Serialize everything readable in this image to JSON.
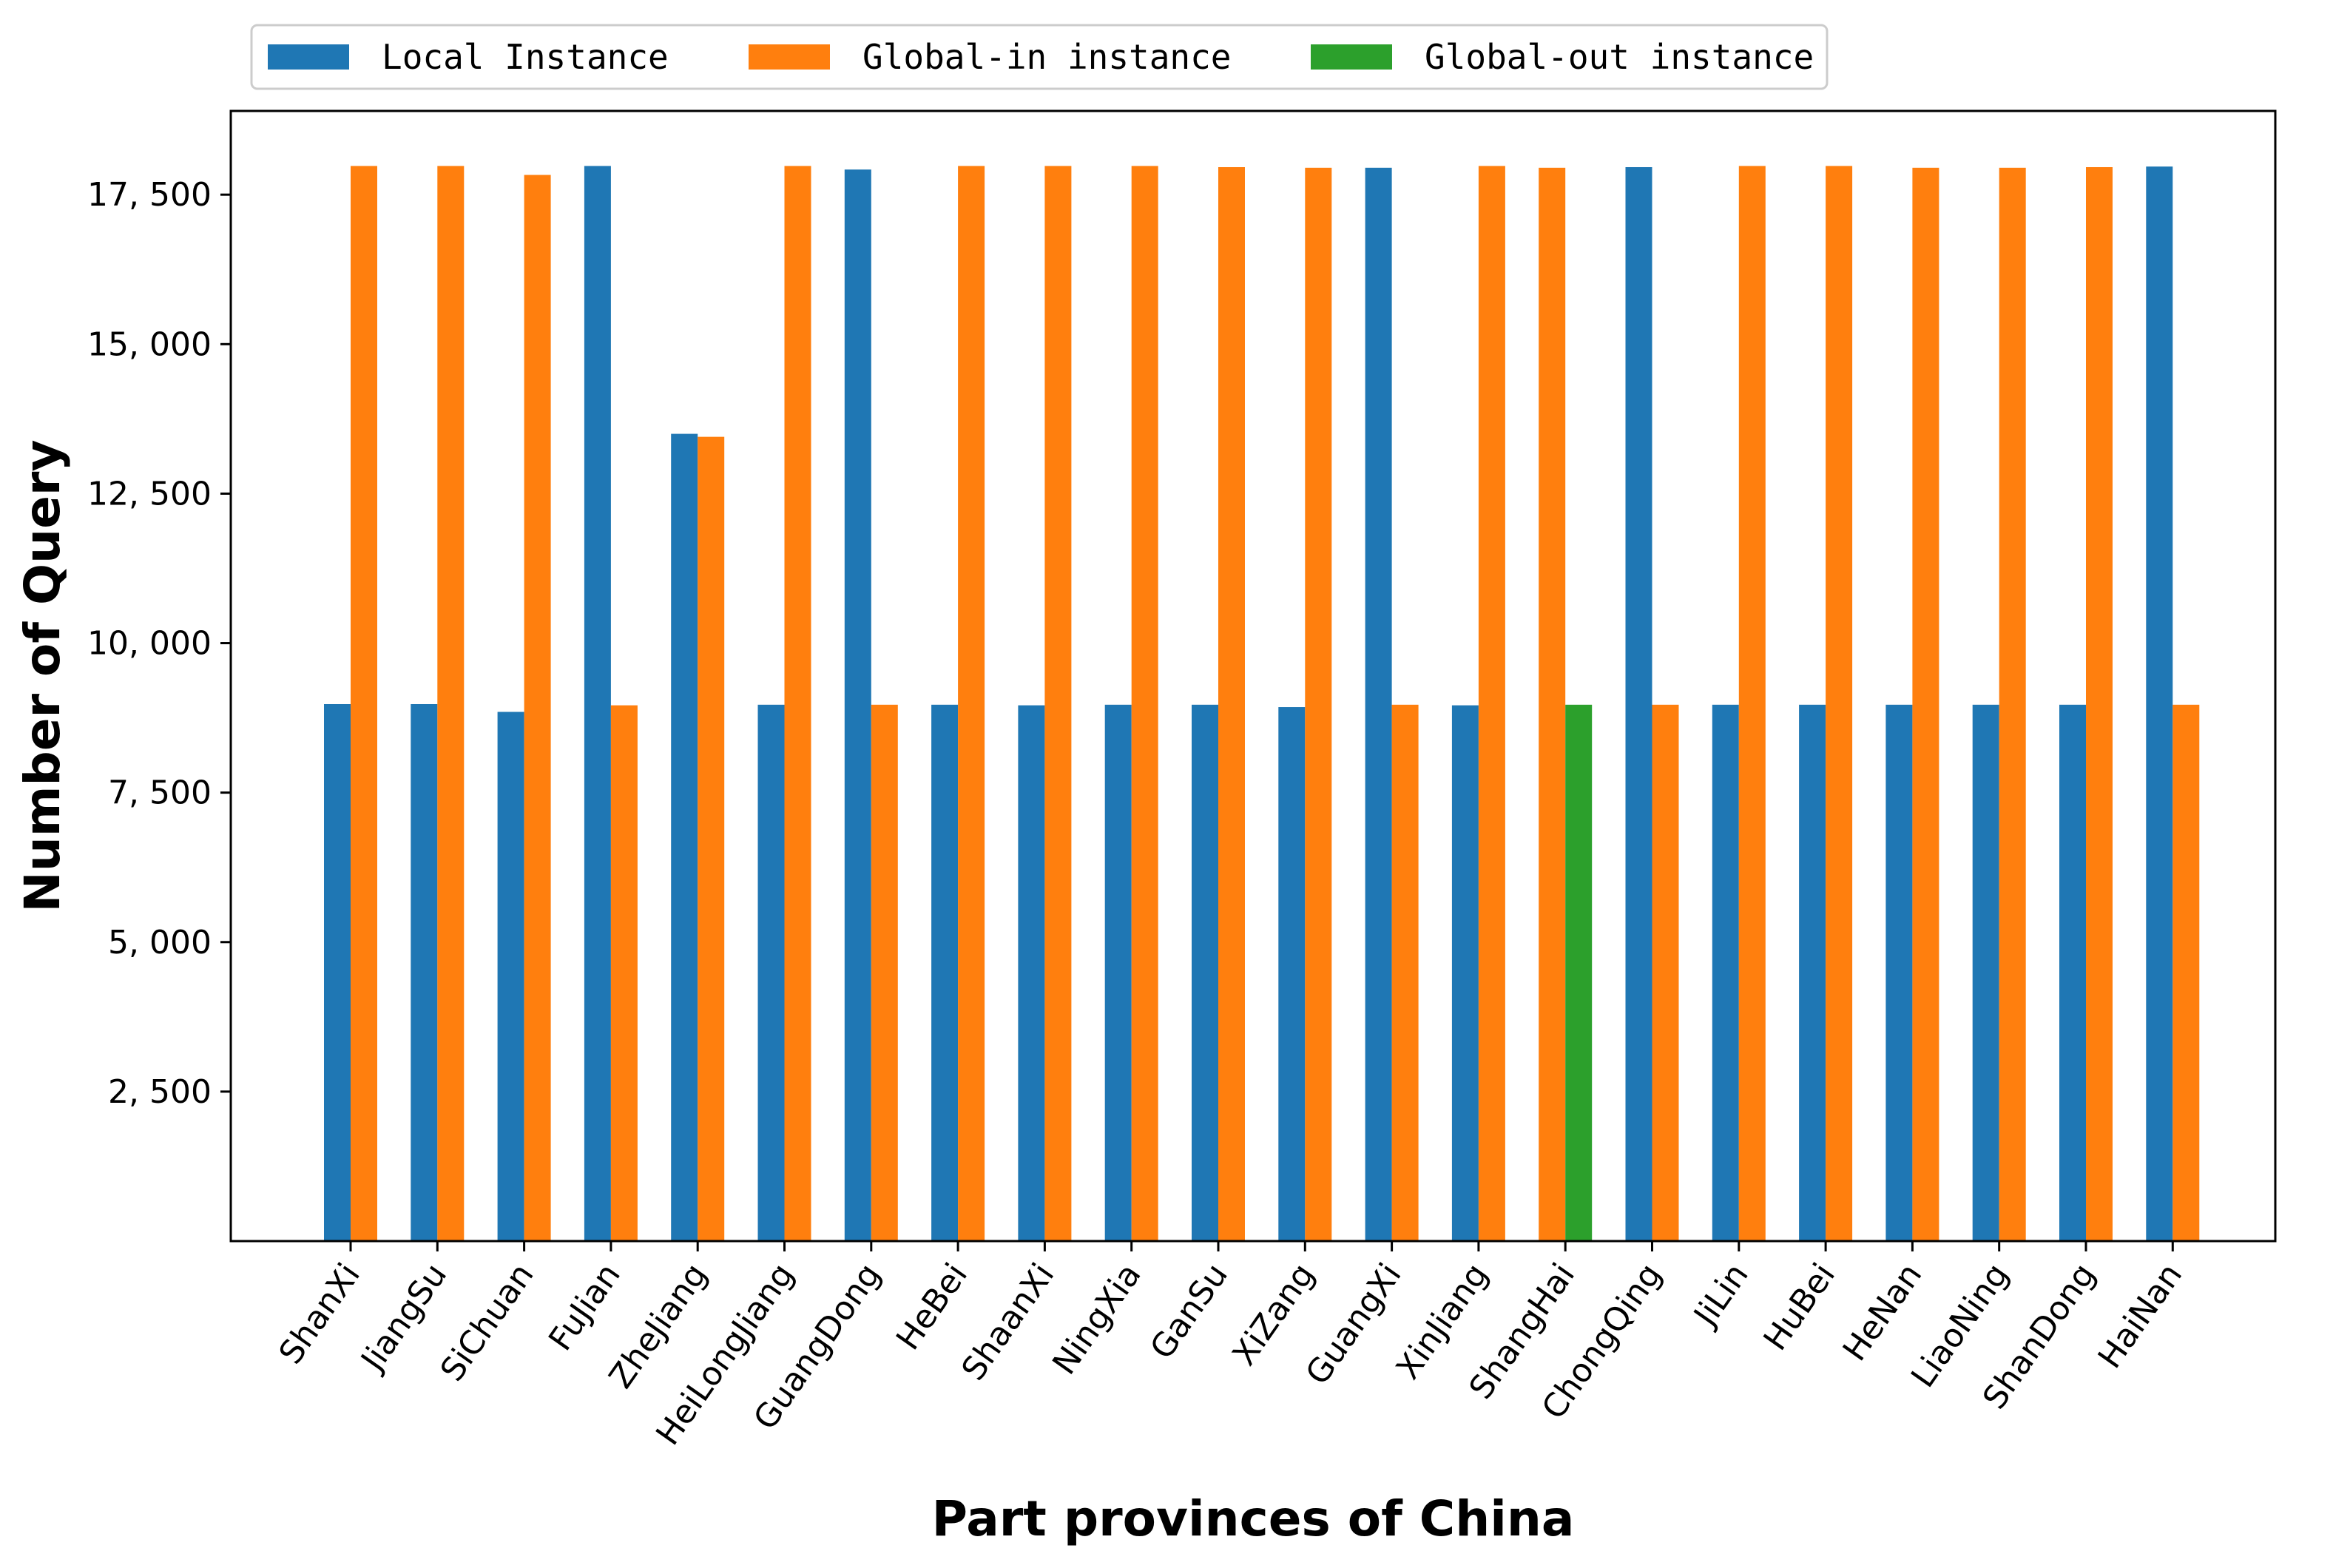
{
  "chart_data": {
    "type": "bar",
    "title": "",
    "xlabel": "Part provinces of China",
    "ylabel": "Number of Query",
    "ylim": [
      0,
      18900
    ],
    "yticks": [
      2500,
      5000,
      7500,
      10000,
      12500,
      15000,
      17500
    ],
    "ytick_labels": [
      "2, 500",
      "5, 000",
      "7, 500",
      "10, 000",
      "12, 500",
      "15, 000",
      "17, 500"
    ],
    "grid": false,
    "legend_position": "top-left, above plot",
    "categories": [
      "ShanXi",
      "JiangSu",
      "SiChuan",
      "FuJian",
      "ZheJiang",
      "HeiLongJiang",
      "GuangDong",
      "HeBei",
      "ShaanXi",
      "NingXia",
      "GanSu",
      "XiZang",
      "GuangXi",
      "XinJiang",
      "ShangHai",
      "ChongQing",
      "JiLin",
      "HuBei",
      "HeNan",
      "LiaoNing",
      "ShanDong",
      "HaiNan"
    ],
    "bars": [
      [
        {
          "series": 0,
          "value": 8980
        },
        {
          "series": 1,
          "value": 17980
        }
      ],
      [
        {
          "series": 0,
          "value": 8980
        },
        {
          "series": 1,
          "value": 17980
        }
      ],
      [
        {
          "series": 0,
          "value": 8850
        },
        {
          "series": 1,
          "value": 17830
        }
      ],
      [
        {
          "series": 0,
          "value": 17980
        },
        {
          "series": 1,
          "value": 8960
        }
      ],
      [
        {
          "series": 0,
          "value": 13500
        },
        {
          "series": 1,
          "value": 13450
        }
      ],
      [
        {
          "series": 0,
          "value": 8970
        },
        {
          "series": 1,
          "value": 17980
        }
      ],
      [
        {
          "series": 0,
          "value": 17920
        },
        {
          "series": 1,
          "value": 8970
        }
      ],
      [
        {
          "series": 0,
          "value": 8970
        },
        {
          "series": 1,
          "value": 17980
        }
      ],
      [
        {
          "series": 0,
          "value": 8960
        },
        {
          "series": 1,
          "value": 17980
        }
      ],
      [
        {
          "series": 0,
          "value": 8970
        },
        {
          "series": 1,
          "value": 17980
        }
      ],
      [
        {
          "series": 0,
          "value": 8970
        },
        {
          "series": 1,
          "value": 17960
        }
      ],
      [
        {
          "series": 0,
          "value": 8930
        },
        {
          "series": 1,
          "value": 17950
        }
      ],
      [
        {
          "series": 0,
          "value": 17950
        },
        {
          "series": 1,
          "value": 8970
        }
      ],
      [
        {
          "series": 0,
          "value": 8960
        },
        {
          "series": 1,
          "value": 17980
        }
      ],
      [
        {
          "series": 1,
          "value": 17950
        },
        {
          "series": 2,
          "value": 8970
        }
      ],
      [
        {
          "series": 0,
          "value": 17960
        },
        {
          "series": 1,
          "value": 8970
        }
      ],
      [
        {
          "series": 0,
          "value": 8970
        },
        {
          "series": 1,
          "value": 17980
        }
      ],
      [
        {
          "series": 0,
          "value": 8970
        },
        {
          "series": 1,
          "value": 17980
        }
      ],
      [
        {
          "series": 0,
          "value": 8970
        },
        {
          "series": 1,
          "value": 17950
        }
      ],
      [
        {
          "series": 0,
          "value": 8970
        },
        {
          "series": 1,
          "value": 17950
        }
      ],
      [
        {
          "series": 0,
          "value": 8970
        },
        {
          "series": 1,
          "value": 17960
        }
      ],
      [
        {
          "series": 0,
          "value": 17970
        },
        {
          "series": 1,
          "value": 8970
        }
      ]
    ],
    "series": [
      {
        "name": "Local Instance",
        "color": "#1f77b4"
      },
      {
        "name": "Global-in instance",
        "color": "#ff7f0e"
      },
      {
        "name": "Global-out instance",
        "color": "#2ca02c"
      }
    ]
  }
}
